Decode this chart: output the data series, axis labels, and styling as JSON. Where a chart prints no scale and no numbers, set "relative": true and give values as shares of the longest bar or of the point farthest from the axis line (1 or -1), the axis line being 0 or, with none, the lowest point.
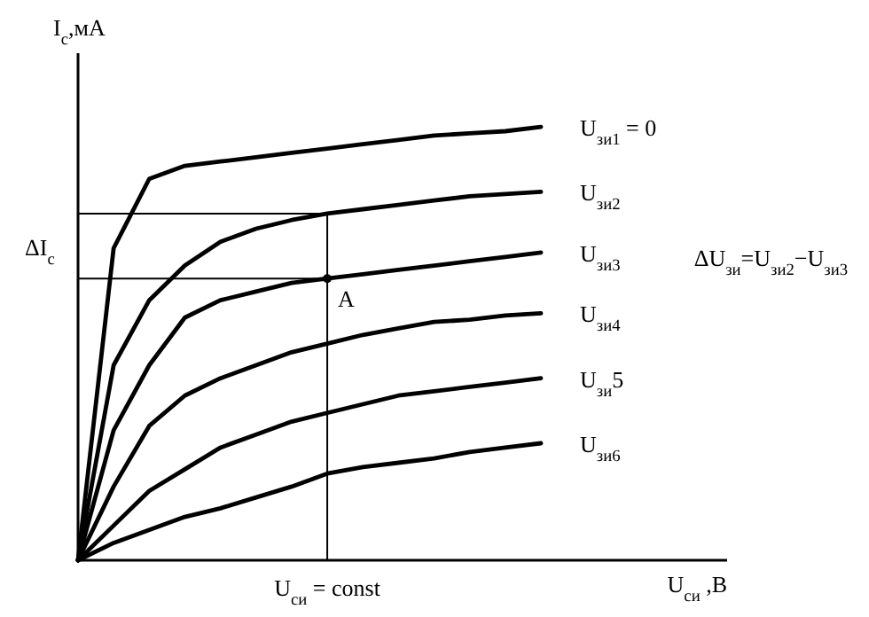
{
  "chart_data": {
    "type": "line",
    "relative": true,
    "xlabel": "U$_{си}$ ,В",
    "ylabel": "I$_{c}$,мА",
    "categories": [
      null,
      null,
      null,
      null,
      null,
      null,
      null,
      null,
      null,
      null,
      null,
      null,
      null,
      null
    ],
    "series": [
      {
        "name": "U$_{зи1}$ = 0",
        "color": "#000000",
        "values": [
          0,
          0.72,
          0.88,
          0.91,
          0.92,
          0.93,
          0.94,
          0.95,
          0.96,
          0.97,
          0.98,
          0.985,
          0.99,
          1
        ]
      },
      {
        "name": "U$_{зи2}$",
        "color": "#000000",
        "values": [
          0,
          0.45,
          0.6,
          0.68,
          0.735,
          0.765,
          0.785,
          0.8,
          0.81,
          0.82,
          0.83,
          0.84,
          0.845,
          0.85
        ]
      },
      {
        "name": "U$_{зи3}$",
        "color": "#000000",
        "values": [
          0,
          0.3,
          0.45,
          0.56,
          0.6,
          0.62,
          0.64,
          0.65,
          0.66,
          0.67,
          0.68,
          0.69,
          0.7,
          0.71
        ]
      },
      {
        "name": "U$_{зи4}$",
        "color": "#000000",
        "values": [
          0,
          0.17,
          0.31,
          0.38,
          0.42,
          0.45,
          0.48,
          0.5,
          0.52,
          0.535,
          0.55,
          0.555,
          0.565,
          0.57
        ]
      },
      {
        "name": "U$_{зи}$5",
        "color": "#000000",
        "values": [
          0,
          0.08,
          0.16,
          0.21,
          0.26,
          0.29,
          0.32,
          0.34,
          0.36,
          0.38,
          0.39,
          0.4,
          0.41,
          0.42
        ]
      },
      {
        "name": "U$_{зи6}$",
        "color": "#000000",
        "values": [
          0,
          0.04,
          0.07,
          0.1,
          0.12,
          0.145,
          0.17,
          0.2,
          0.215,
          0.225,
          0.235,
          0.25,
          0.26,
          0.27
        ]
      }
    ],
    "ref_lines": [
      {
        "axis": "y",
        "value": 0.8
      },
      {
        "axis": "y",
        "value": 0.65
      }
    ],
    "annotations": [
      {
        "text": "A",
        "y": 0.65
      },
      "U$_{си}$ = const",
      "ΔI$_{c}$",
      "ΔU$_{зи}$=U$_{зи2}$−U$_{зи3}$"
    ]
  }
}
